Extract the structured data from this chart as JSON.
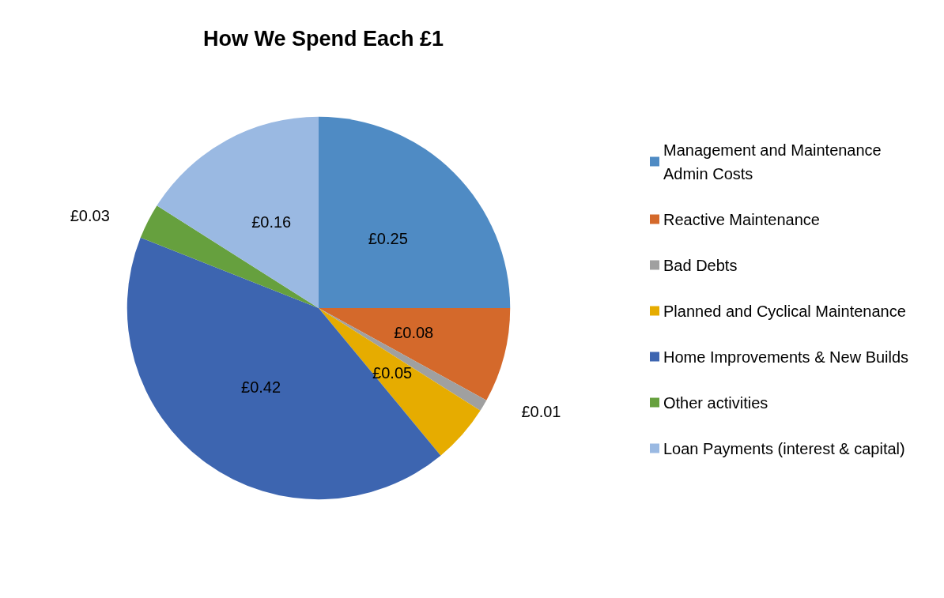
{
  "chart_data": {
    "type": "pie",
    "title": "How We Spend Each £1",
    "categories": [
      "Management and Maintenance Admin Costs",
      "Reactive Maintenance",
      "Bad Debts",
      "Planned and Cyclical Maintenance",
      "Home Improvements & New Builds",
      "Other activities",
      "Loan Payments (interest & capital)"
    ],
    "values": [
      0.25,
      0.08,
      0.01,
      0.05,
      0.42,
      0.03,
      0.16
    ],
    "value_labels": [
      "£0.25",
      "£0.08",
      "£0.01",
      "£0.05",
      "£0.42",
      "£0.03",
      "£0.16"
    ],
    "colors": [
      "#4f8bc4",
      "#d4692b",
      "#a0a0a0",
      "#e6ac00",
      "#3d65b0",
      "#66a03e",
      "#9ab9e2"
    ],
    "legend": "right"
  }
}
